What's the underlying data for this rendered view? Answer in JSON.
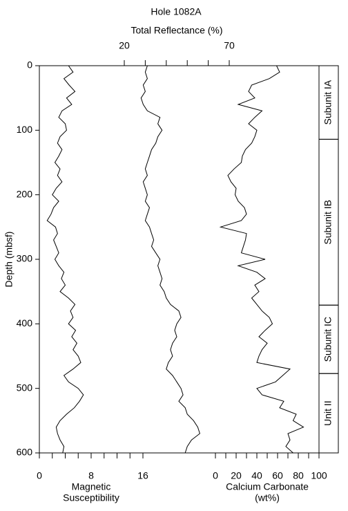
{
  "chart_data": {
    "type": "well_log",
    "title": "Hole 1082A",
    "ylabel": "Depth (mbsf)",
    "ylim": [
      0,
      600
    ],
    "yticks": [
      0,
      100,
      200,
      300,
      400,
      500,
      600
    ],
    "depth": [
      0,
      10,
      20,
      30,
      40,
      50,
      60,
      70,
      80,
      90,
      100,
      110,
      120,
      130,
      140,
      150,
      160,
      170,
      180,
      190,
      200,
      210,
      220,
      230,
      240,
      250,
      260,
      270,
      280,
      290,
      300,
      310,
      320,
      330,
      340,
      350,
      360,
      370,
      380,
      390,
      400,
      410,
      420,
      430,
      440,
      450,
      460,
      470,
      480,
      490,
      500,
      510,
      520,
      530,
      540,
      550,
      560,
      570,
      580,
      590,
      600
    ],
    "series": [
      {
        "axis_label": [
          "Magnetic",
          "Susceptibility"
        ],
        "axis_position": "bottom",
        "color": "#000000",
        "xlim": [
          0,
          16
        ],
        "xticks": [
          0,
          8,
          16
        ],
        "xminor_ticks": [
          2,
          4,
          6,
          10,
          12,
          14
        ],
        "values": [
          4.5,
          5.2,
          3.8,
          4.6,
          5.5,
          4.2,
          5.0,
          3.5,
          3.0,
          4.0,
          4.2,
          3.2,
          2.8,
          3.5,
          3.0,
          2.4,
          3.2,
          2.8,
          3.5,
          2.6,
          2.0,
          3.0,
          2.2,
          1.8,
          1.2,
          2.5,
          2.8,
          2.2,
          2.6,
          3.0,
          2.4,
          3.0,
          3.8,
          3.4,
          4.0,
          3.2,
          4.5,
          5.5,
          4.8,
          5.2,
          4.5,
          5.6,
          5.0,
          5.8,
          5.2,
          6.0,
          6.4,
          5.2,
          3.8,
          4.5,
          6.0,
          6.8,
          6.2,
          5.4,
          4.2,
          3.2,
          2.6,
          2.8,
          3.2,
          3.8,
          3.6
        ]
      },
      {
        "axis_label": [
          "Total Reflectance (%)"
        ],
        "axis_position": "top",
        "color": "#000000",
        "xlim": [
          20,
          70
        ],
        "xticks": [
          20,
          70
        ],
        "xminor_ticks": [
          30,
          40,
          50,
          60
        ],
        "values": [
          31,
          30,
          31,
          29,
          30,
          28,
          29,
          31,
          37,
          36,
          38,
          36,
          35,
          33,
          32,
          31,
          30,
          31,
          29,
          30,
          31,
          30,
          32,
          31,
          30,
          32,
          33,
          34,
          33,
          35,
          37,
          36,
          37,
          38,
          37,
          39,
          40,
          42,
          46,
          47,
          45,
          44,
          45,
          43,
          42,
          43,
          41,
          40,
          43,
          45,
          47,
          48,
          46,
          49,
          50,
          53,
          55,
          56,
          52,
          50,
          49
        ]
      },
      {
        "axis_label": [
          "Calcium Carbonate",
          "(wt%)"
        ],
        "axis_position": "bottom",
        "color": "#000000",
        "xlim": [
          0,
          100
        ],
        "xticks": [
          0,
          20,
          40,
          60,
          80,
          100
        ],
        "xminor_ticks": [
          10,
          30,
          50,
          70,
          90
        ],
        "values": [
          59,
          62,
          52,
          35,
          32,
          38,
          22,
          45,
          38,
          32,
          40,
          38,
          35,
          29,
          26,
          25,
          18,
          12,
          15,
          20,
          19,
          22,
          28,
          30,
          25,
          5,
          30,
          29,
          27,
          25,
          48,
          22,
          40,
          48,
          38,
          42,
          35,
          40,
          45,
          52,
          55,
          48,
          42,
          50,
          45,
          42,
          40,
          72,
          65,
          58,
          40,
          45,
          66,
          62,
          78,
          75,
          85,
          70,
          72,
          68,
          75
        ]
      }
    ],
    "units": [
      {
        "label": "Subunit IA",
        "top": 0,
        "bottom": 114
      },
      {
        "label": "Subunit IB",
        "top": 114,
        "bottom": 371
      },
      {
        "label": "Subunit IC",
        "top": 371,
        "bottom": 477
      },
      {
        "label": "Unit II",
        "top": 477,
        "bottom": 600
      }
    ]
  }
}
